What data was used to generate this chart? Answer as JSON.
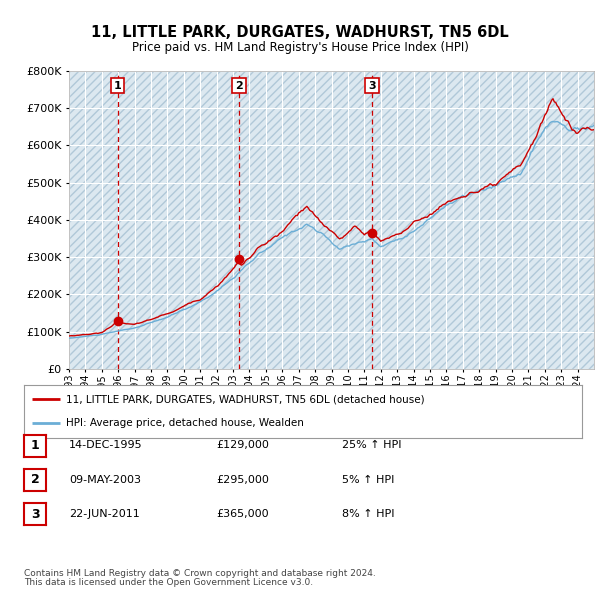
{
  "title": "11, LITTLE PARK, DURGATES, WADHURST, TN5 6DL",
  "subtitle": "Price paid vs. HM Land Registry's House Price Index (HPI)",
  "legend_line1": "11, LITTLE PARK, DURGATES, WADHURST, TN5 6DL (detached house)",
  "legend_line2": "HPI: Average price, detached house, Wealden",
  "table_rows": [
    {
      "num": "1",
      "date": "14-DEC-1995",
      "price": "£129,000",
      "hpi": "25% ↑ HPI"
    },
    {
      "num": "2",
      "date": "09-MAY-2003",
      "price": "£295,000",
      "hpi": "5% ↑ HPI"
    },
    {
      "num": "3",
      "date": "22-JUN-2011",
      "price": "£365,000",
      "hpi": "8% ↑ HPI"
    }
  ],
  "footnote1": "Contains HM Land Registry data © Crown copyright and database right 2024.",
  "footnote2": "This data is licensed under the Open Government Licence v3.0.",
  "red_color": "#cc0000",
  "blue_color": "#6baed6",
  "plot_bg": "#dce8f0",
  "grid_color": "#ffffff",
  "vline_color": "#cc0000",
  "ylim": [
    0,
    800000
  ],
  "yticks": [
    0,
    100000,
    200000,
    300000,
    400000,
    500000,
    600000,
    700000,
    800000
  ],
  "sale_years": [
    1995.958,
    2003.36,
    2011.47
  ],
  "sale_prices": [
    129000,
    295000,
    365000
  ],
  "xtick_years": [
    1993,
    1994,
    1995,
    1996,
    1997,
    1998,
    1999,
    2000,
    2001,
    2002,
    2003,
    2004,
    2005,
    2006,
    2007,
    2008,
    2009,
    2010,
    2011,
    2012,
    2013,
    2014,
    2015,
    2016,
    2017,
    2018,
    2019,
    2020,
    2021,
    2022,
    2023,
    2024
  ]
}
